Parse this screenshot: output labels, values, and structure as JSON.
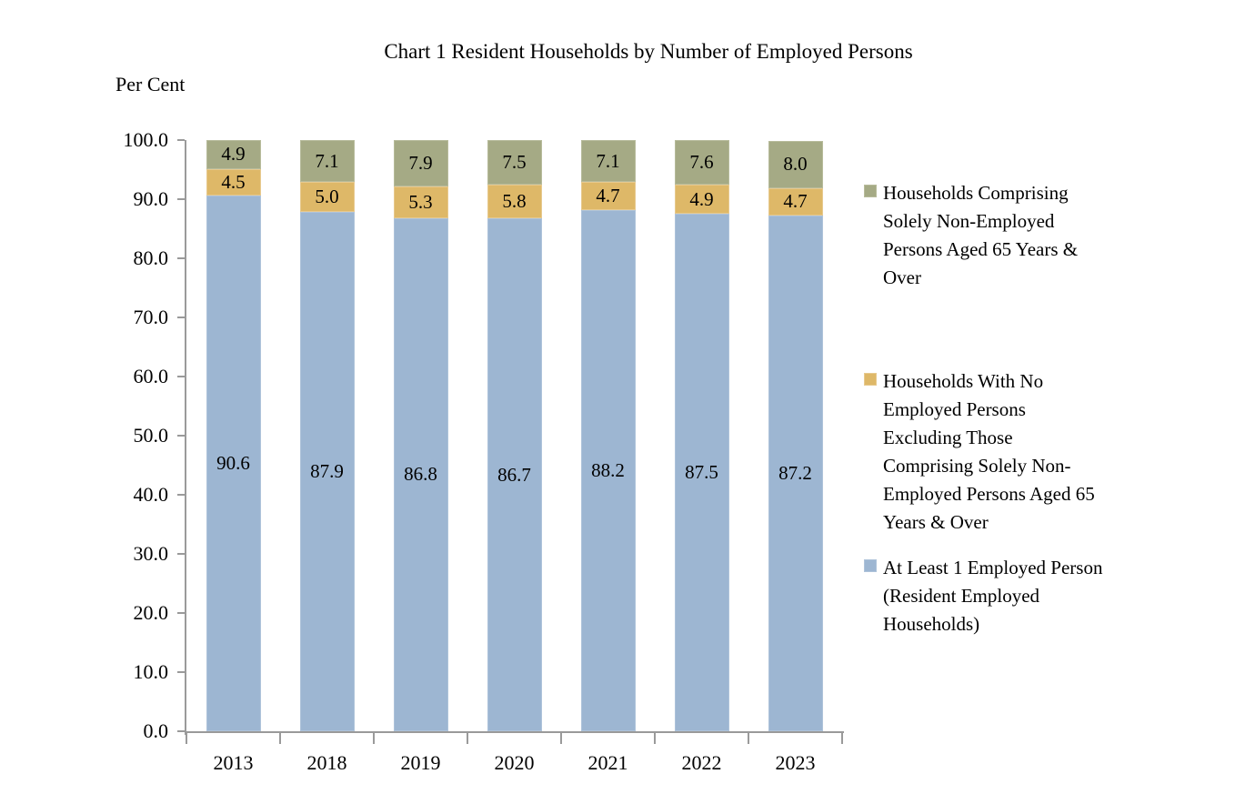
{
  "chart_data": {
    "type": "bar",
    "stacked": true,
    "title": "Chart 1 Resident Households by Number of Employed Persons",
    "ylabel": "Per Cent",
    "categories": [
      "2013",
      "2018",
      "2019",
      "2020",
      "2021",
      "2022",
      "2023"
    ],
    "series": [
      {
        "name": "At Least 1 Employed Person (Resident Employed Households)",
        "color": "#9DB6D2",
        "border_color": "#AEC3DA",
        "values": [
          90.6,
          87.9,
          86.8,
          86.7,
          88.2,
          87.5,
          87.2
        ]
      },
      {
        "name": "Households With No Employed Persons Excluding Those Comprising Solely Non-Employed Persons Aged 65 Years & Over",
        "color": "#DEB868",
        "border_color": "#E7C98E",
        "values": [
          4.5,
          5.0,
          5.3,
          5.8,
          4.7,
          4.9,
          4.7
        ]
      },
      {
        "name": "Households Comprising Solely Non-Employed Persons Aged 65 Years & Over",
        "color": "#A5AA85",
        "border_color": "#B7BB9B",
        "values": [
          4.9,
          7.1,
          7.9,
          7.5,
          7.1,
          7.6,
          8.0
        ]
      }
    ],
    "ylim": [
      0,
      100
    ],
    "ytick_step": 10,
    "ytick_labels": [
      "0.0",
      "10.0",
      "20.0",
      "30.0",
      "40.0",
      "50.0",
      "60.0",
      "70.0",
      "80.0",
      "90.0",
      "100.0"
    ],
    "grid": false,
    "legend_position": "right",
    "axis_color": "#9a9a9a",
    "data_labels": true
  },
  "legend": {
    "items": [
      {
        "series_index": 2,
        "label": "Households Comprising\nSolely Non-Employed\nPersons Aged 65 Years &\nOver"
      },
      {
        "series_index": 1,
        "label": "Households With No\nEmployed Persons\nExcluding Those\nComprising Solely Non-\nEmployed Persons Aged 65\nYears & Over"
      },
      {
        "series_index": 0,
        "label": "At Least 1 Employed Person\n(Resident Employed\nHouseholds)"
      }
    ]
  }
}
